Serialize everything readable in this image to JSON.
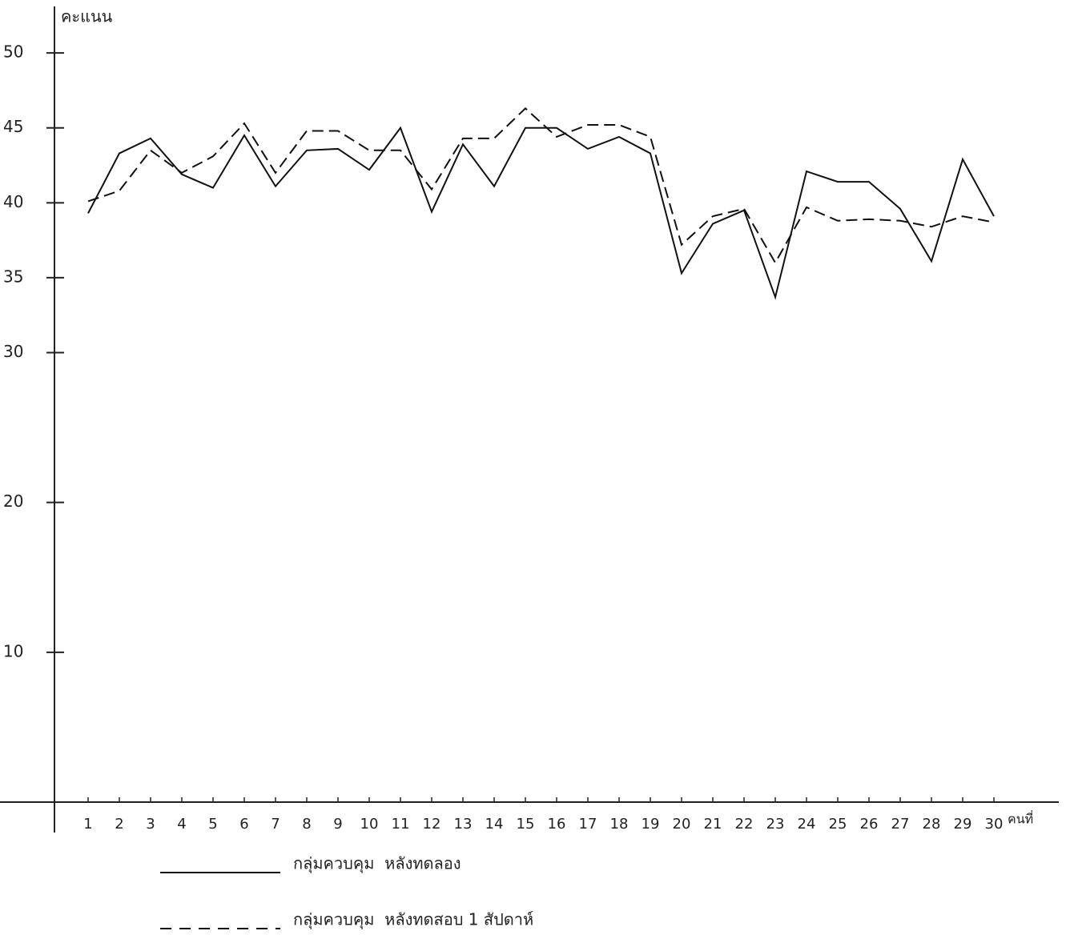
{
  "chart_data": {
    "type": "line",
    "y_axis_label": "คะแนน",
    "x_axis_label": "คนที่",
    "categories": [
      "1",
      "2",
      "3",
      "4",
      "5",
      "6",
      "7",
      "8",
      "9",
      "10",
      "11",
      "12",
      "13",
      "14",
      "15",
      "16",
      "17",
      "18",
      "19",
      "20",
      "21",
      "22",
      "23",
      "24",
      "25",
      "26",
      "27",
      "28",
      "29",
      "30"
    ],
    "series": [
      {
        "name": "กลุ่มควบคุม  หลังทดลอง",
        "color": "#111111",
        "dash": "solid",
        "values": [
          39.3,
          43.3,
          44.3,
          41.9,
          41.0,
          44.5,
          41.1,
          43.5,
          43.6,
          42.2,
          45.0,
          39.4,
          43.9,
          41.1,
          45.0,
          45.0,
          43.6,
          44.4,
          43.3,
          35.3,
          38.6,
          39.5,
          33.7,
          42.1,
          41.4,
          41.4,
          39.6,
          36.1,
          42.9,
          39.1
        ]
      },
      {
        "name": "กลุ่มควบคุม  หลังทดสอบ 1 สัปดาห์",
        "color": "#111111",
        "dash": "dashed",
        "values": [
          40.1,
          40.8,
          43.5,
          42.0,
          43.1,
          45.3,
          42.0,
          44.8,
          44.8,
          43.5,
          43.5,
          40.9,
          44.3,
          44.3,
          46.3,
          44.4,
          45.2,
          45.2,
          44.4,
          37.2,
          39.1,
          39.6,
          36.0,
          39.7,
          38.8,
          38.9,
          38.8,
          38.4,
          39.1,
          38.7
        ]
      }
    ],
    "ylim": [
      0,
      53
    ],
    "yticks": [
      10,
      20,
      30,
      35,
      40,
      45,
      50
    ],
    "grid": false
  }
}
